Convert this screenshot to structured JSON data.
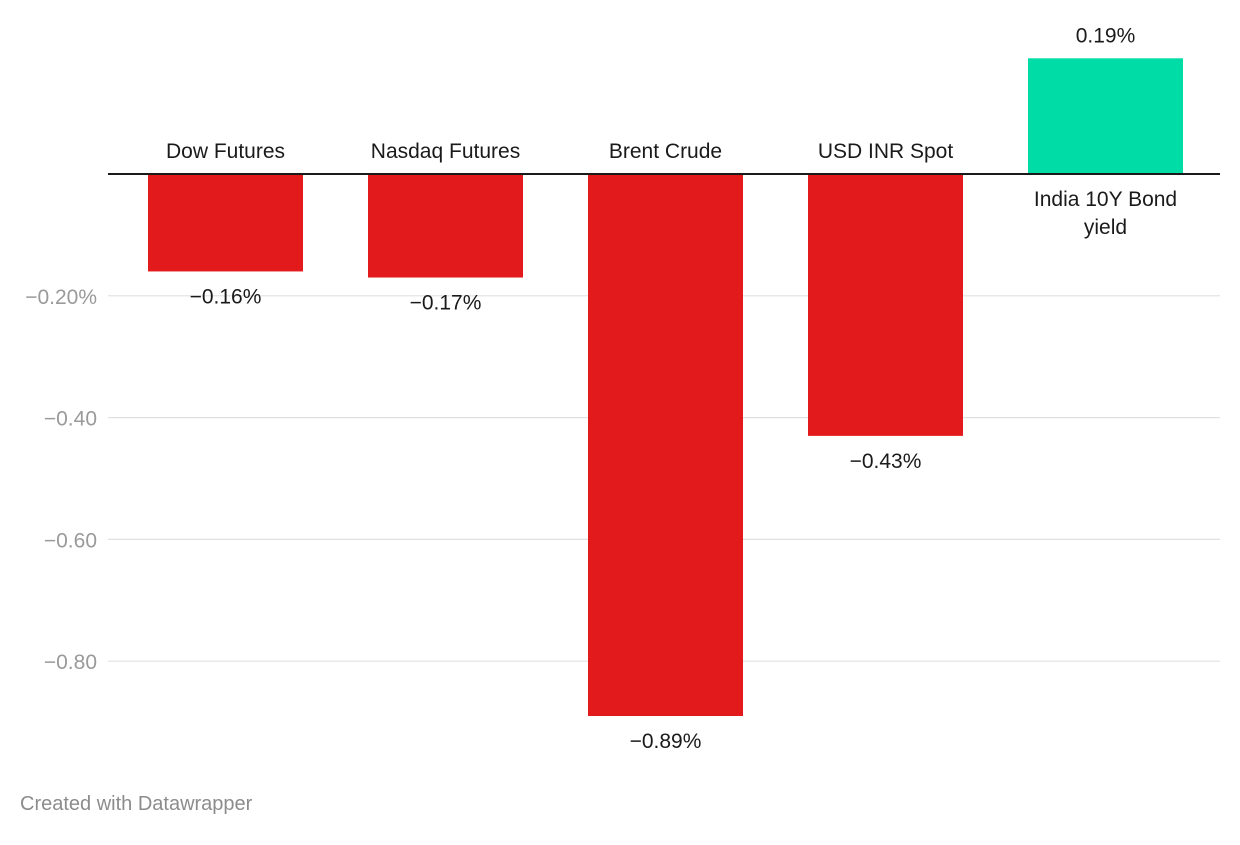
{
  "chart_data": {
    "type": "bar",
    "categories": [
      "Dow Futures",
      "Nasdaq Futures",
      "Brent Crude",
      "USD INR Spot",
      "India 10Y Bond yield"
    ],
    "category_lines": [
      [
        "Dow Futures"
      ],
      [
        "Nasdaq Futures"
      ],
      [
        "Brent Crude"
      ],
      [
        "USD INR Spot"
      ],
      [
        "India 10Y Bond",
        "yield"
      ]
    ],
    "values": [
      -0.16,
      -0.17,
      -0.89,
      -0.43,
      0.19
    ],
    "value_labels": [
      "−0.16%",
      "−0.17%",
      "−0.89%",
      "−0.43%",
      "0.19%"
    ],
    "ylim": [
      -0.9,
      0.19
    ],
    "y_ticks": [
      -0.2,
      -0.4,
      -0.6,
      -0.8
    ],
    "y_tick_labels": [
      "−0.20%",
      "−0.40",
      "−0.60",
      "−0.80"
    ],
    "grid": true,
    "colors": {
      "negative": "#e31a1c",
      "positive": "#00dca6",
      "grid": "#e0e0e0",
      "tick_label": "#9a9a9a",
      "baseline": "#1a1a1a",
      "text": "#1a1a1a"
    }
  },
  "footer": {
    "credit": "Created with Datawrapper"
  }
}
